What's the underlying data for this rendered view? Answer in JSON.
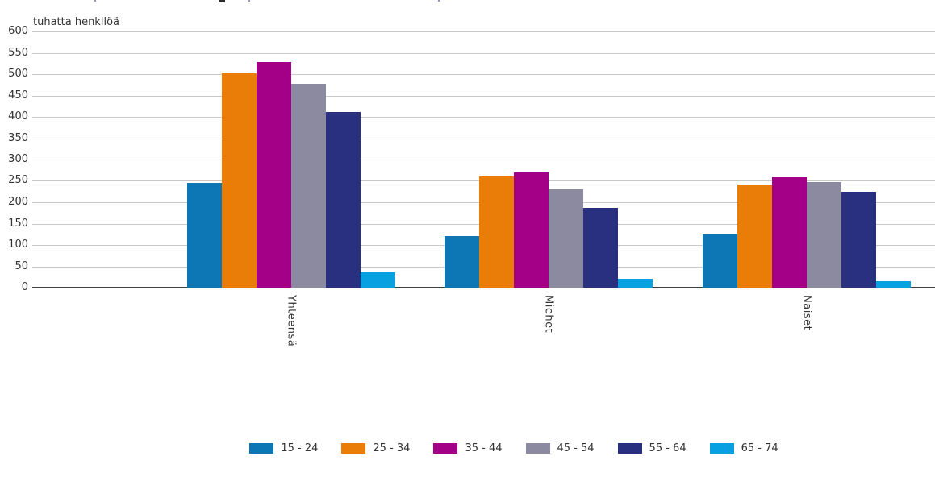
{
  "chart_data": {
    "type": "bar",
    "title": "",
    "ylabel": "tuhatta henkilöä",
    "xlabel": "",
    "ylim": [
      0,
      600
    ],
    "ytick_step": 50,
    "yticks": [
      600,
      550,
      500,
      450,
      400,
      350,
      300,
      250,
      200,
      150,
      100,
      50,
      0
    ],
    "grid": true,
    "legend_position": "bottom",
    "categories": [
      "Yhteensä",
      "Miehet",
      "Naiset"
    ],
    "series": [
      {
        "name": "15 - 24",
        "color": "#0d76b4",
        "values": [
          245,
          121,
          126
        ]
      },
      {
        "name": "25 - 34",
        "color": "#e97d08",
        "values": [
          502,
          261,
          241
        ]
      },
      {
        "name": "35 - 44",
        "color": "#a40087",
        "values": [
          528,
          270,
          258
        ]
      },
      {
        "name": "45 - 54",
        "color": "#8b8aa0",
        "values": [
          478,
          230,
          248
        ]
      },
      {
        "name": "55 - 64",
        "color": "#293080",
        "values": [
          411,
          186,
          225
        ]
      },
      {
        "name": "65 - 74",
        "color": "#09a0e2",
        "values": [
          36,
          20,
          16
        ]
      }
    ],
    "colors": {
      "gridline": "#c9c9c9",
      "axis_line": "#3f3f3f",
      "text": "#333333",
      "background": "#ffffff"
    }
  }
}
